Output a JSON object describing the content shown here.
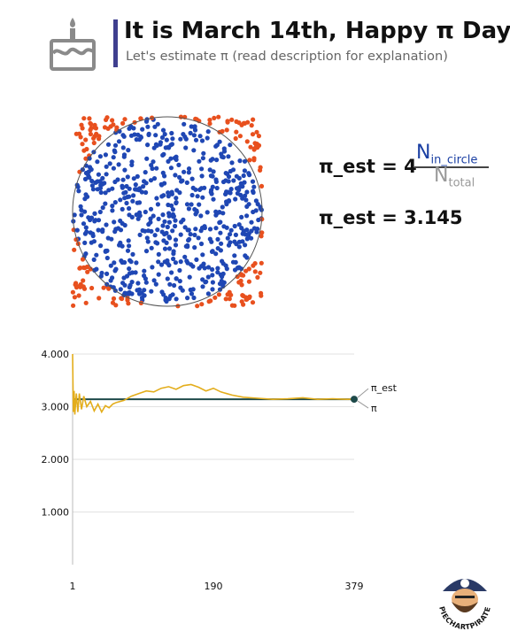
{
  "header": {
    "title": "It is March 14th, Happy π Day!",
    "subtitle": "Let's estimate π (read description for explanation)",
    "icon": "cake-icon",
    "accent": "#3f3f8f"
  },
  "formula": {
    "lhs": "π_est = 4",
    "numerator": "N",
    "numerator_sub": "in_circle",
    "denominator": "N",
    "denominator_sub": "total",
    "estimate_label": "π_est = 3.145"
  },
  "logo": {
    "text": "PIECHARTPIRATE",
    "icon": "pirate-logo-icon"
  },
  "chart_data": [
    {
      "type": "scatter",
      "title": "",
      "inside_color": "#1f47b4",
      "outside_color": "#e8501e",
      "circle_color": "#555555",
      "point_count": 800,
      "seed": 314
    },
    {
      "type": "line",
      "title": "",
      "x_ticks": [
        "1",
        "190",
        "379"
      ],
      "y_ticks": [
        "1.000",
        "2.000",
        "3.000",
        "4.000"
      ],
      "xlim": [
        1,
        379
      ],
      "ylim": [
        0,
        4
      ],
      "grid": true,
      "series": [
        {
          "name": "π_est",
          "color": "#e3ad1b",
          "x": [
            1,
            2,
            3,
            4,
            6,
            8,
            10,
            13,
            16,
            20,
            25,
            30,
            35,
            40,
            45,
            50,
            55,
            60,
            70,
            80,
            90,
            100,
            110,
            120,
            130,
            140,
            150,
            160,
            170,
            180,
            190,
            200,
            215,
            230,
            250,
            270,
            290,
            310,
            330,
            350,
            370,
            379
          ],
          "values": [
            4.0,
            2.9,
            3.3,
            2.85,
            3.25,
            2.9,
            3.25,
            2.95,
            3.2,
            3.0,
            3.1,
            2.92,
            3.05,
            2.9,
            3.02,
            2.98,
            3.05,
            3.08,
            3.12,
            3.2,
            3.25,
            3.3,
            3.28,
            3.35,
            3.38,
            3.33,
            3.4,
            3.42,
            3.37,
            3.3,
            3.35,
            3.28,
            3.22,
            3.18,
            3.16,
            3.14,
            3.15,
            3.17,
            3.14,
            3.15,
            3.14,
            3.145
          ]
        },
        {
          "name": "π",
          "color": "#1e4a4a",
          "x": [
            1,
            379
          ],
          "values": [
            3.14159,
            3.14159
          ]
        }
      ]
    }
  ]
}
